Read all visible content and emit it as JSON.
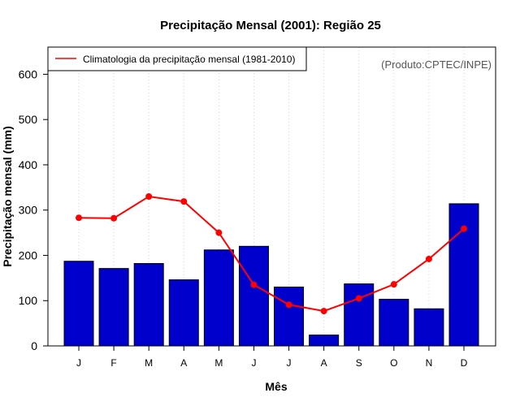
{
  "chart_data": {
    "type": "bar",
    "title": "Precipitação Mensal (2001): Região 25",
    "xlabel": "Mês",
    "ylabel": "Precipitação mensal (mm)",
    "categories": [
      "J",
      "F",
      "M",
      "A",
      "M",
      "J",
      "J",
      "A",
      "S",
      "O",
      "N",
      "D"
    ],
    "ylim": [
      0,
      660
    ],
    "yticks": [
      0,
      100,
      200,
      300,
      400,
      500,
      600
    ],
    "grid": "vertical-dotted",
    "series": [
      {
        "name": "Precipitação mensal 2001",
        "type": "bar",
        "color": "#0000cc",
        "values": [
          187,
          171,
          182,
          146,
          212,
          220,
          130,
          24,
          137,
          103,
          82,
          314
        ]
      },
      {
        "name": "Climatologia da precipitação mensal (1981-2010)",
        "type": "line",
        "color": "#ff0000",
        "values": [
          283,
          282,
          330,
          319,
          250,
          135,
          91,
          77,
          105,
          136,
          192,
          259
        ]
      }
    ],
    "legend": {
      "position": "top-left",
      "entries": [
        "Climatologia da precipitação mensal (1981-2010)"
      ]
    },
    "credit": "(Produto:CPTEC/INPE)"
  }
}
